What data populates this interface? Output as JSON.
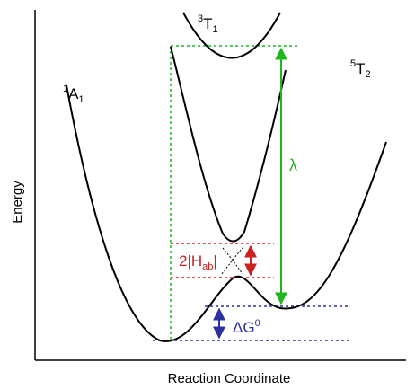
{
  "axes": {
    "x_label": "Reaction Coordinate",
    "y_label": "Energy"
  },
  "states": [
    {
      "id": "A1",
      "superscript": "1",
      "main": "A",
      "subscript": "1"
    },
    {
      "id": "T1",
      "superscript": "3",
      "main": "T",
      "subscript": "1"
    },
    {
      "id": "T2",
      "superscript": "5",
      "main": "T",
      "subscript": "2"
    }
  ],
  "annotations": {
    "lambda": {
      "text": "λ",
      "color": "#22b522"
    },
    "hab": {
      "prefix": "2|H",
      "sub": "ab",
      "suffix": "|",
      "color": "#cc1f1f"
    },
    "delta_g": {
      "main": "ΔG",
      "sup": "0",
      "color": "#2b2fa0"
    }
  },
  "colors": {
    "curve": "#000000",
    "green": "#22b522",
    "red": "#cc1f1f",
    "blue": "#2b2fa0"
  }
}
